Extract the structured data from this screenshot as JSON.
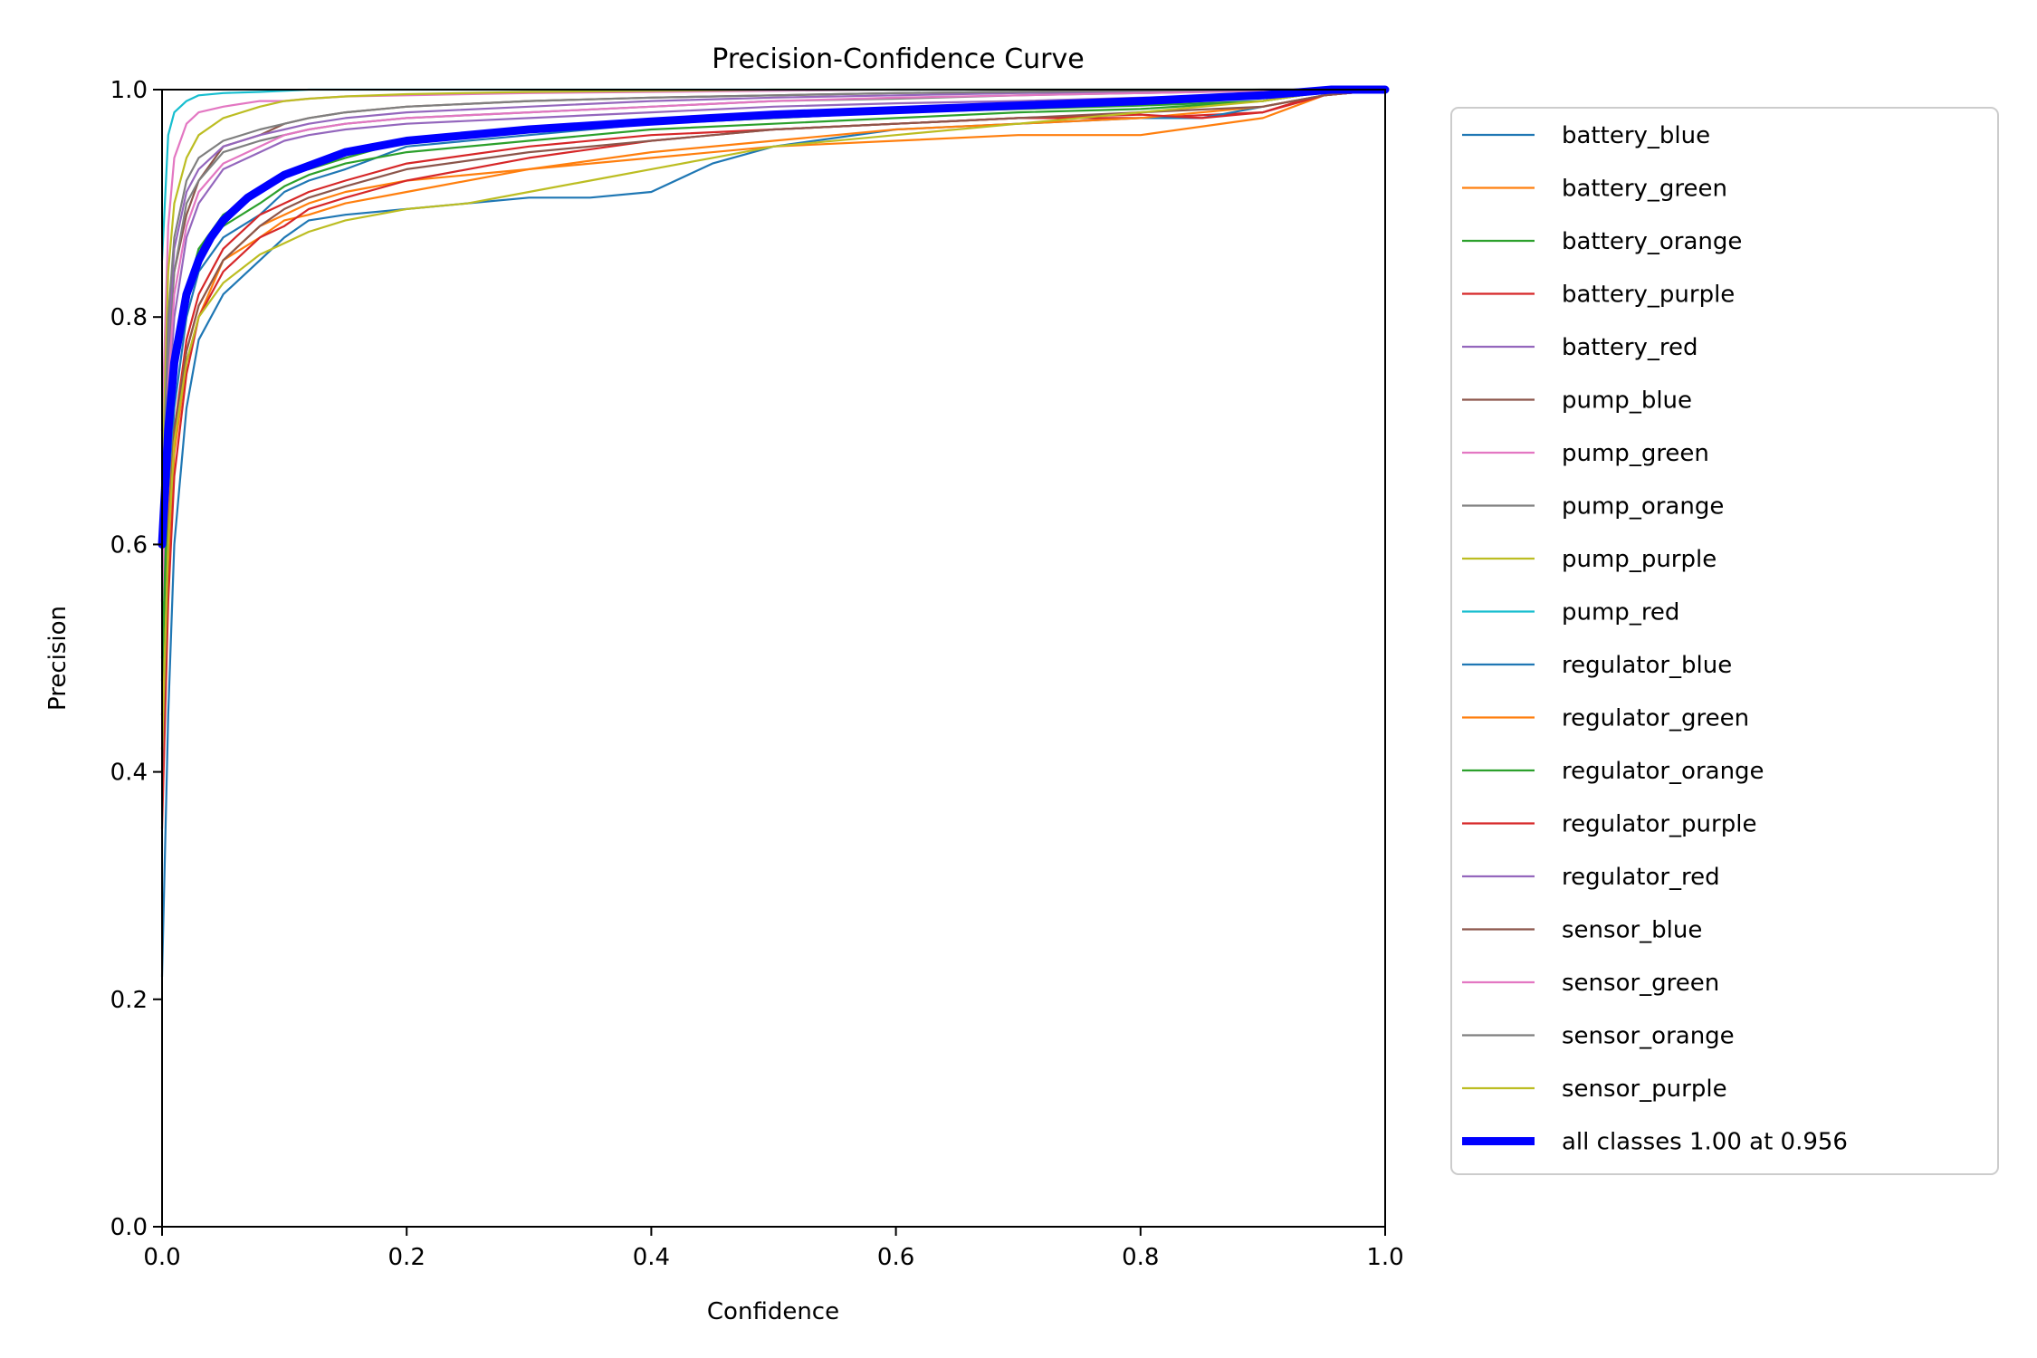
{
  "chart_data": {
    "type": "line",
    "title": "Precision-Confidence Curve",
    "xlabel": "Confidence",
    "ylabel": "Precision",
    "xlim": [
      0,
      1
    ],
    "ylim": [
      0,
      1
    ],
    "xticks": [
      "0.0",
      "0.2",
      "0.4",
      "0.6",
      "0.8",
      "1.0"
    ],
    "yticks": [
      "0.0",
      "0.2",
      "0.4",
      "0.6",
      "0.8",
      "1.0"
    ],
    "grid": false,
    "legend_position": "outside-right",
    "series": [
      {
        "name": "battery_blue",
        "color": "#1f77b4",
        "x": [
          0,
          0.005,
          0.01,
          0.02,
          0.03,
          0.05,
          0.08,
          0.1,
          0.12,
          0.15,
          0.2,
          0.3,
          0.4,
          0.5,
          0.6,
          0.7,
          0.8,
          0.9,
          0.95,
          1.0
        ],
        "y": [
          0.45,
          0.62,
          0.72,
          0.8,
          0.84,
          0.87,
          0.89,
          0.91,
          0.92,
          0.93,
          0.95,
          0.96,
          0.97,
          0.975,
          0.98,
          0.985,
          0.99,
          0.993,
          0.998,
          1.0
        ]
      },
      {
        "name": "battery_green",
        "color": "#ff7f0e",
        "x": [
          0,
          0.005,
          0.01,
          0.02,
          0.03,
          0.05,
          0.08,
          0.1,
          0.12,
          0.15,
          0.2,
          0.3,
          0.4,
          0.5,
          0.6,
          0.7,
          0.8,
          0.9,
          0.95,
          1.0
        ],
        "y": [
          0.4,
          0.58,
          0.68,
          0.76,
          0.8,
          0.85,
          0.88,
          0.89,
          0.9,
          0.91,
          0.92,
          0.93,
          0.94,
          0.95,
          0.955,
          0.96,
          0.96,
          0.975,
          0.995,
          1.0
        ]
      },
      {
        "name": "battery_orange",
        "color": "#2ca02c",
        "x": [
          0,
          0.005,
          0.01,
          0.02,
          0.03,
          0.05,
          0.08,
          0.1,
          0.12,
          0.15,
          0.2,
          0.3,
          0.4,
          0.5,
          0.6,
          0.7,
          0.8,
          0.9,
          0.95,
          1.0
        ],
        "y": [
          0.5,
          0.68,
          0.76,
          0.82,
          0.86,
          0.89,
          0.91,
          0.925,
          0.93,
          0.94,
          0.955,
          0.965,
          0.97,
          0.975,
          0.98,
          0.983,
          0.986,
          0.99,
          0.998,
          1.0
        ]
      },
      {
        "name": "battery_purple",
        "color": "#d62728",
        "x": [
          0,
          0.005,
          0.01,
          0.02,
          0.03,
          0.05,
          0.08,
          0.1,
          0.12,
          0.15,
          0.2,
          0.3,
          0.4,
          0.5,
          0.6,
          0.7,
          0.8,
          0.9,
          0.95,
          1.0
        ],
        "y": [
          0.42,
          0.6,
          0.7,
          0.78,
          0.82,
          0.86,
          0.89,
          0.9,
          0.91,
          0.92,
          0.935,
          0.95,
          0.96,
          0.965,
          0.97,
          0.975,
          0.975,
          0.98,
          0.995,
          1.0
        ]
      },
      {
        "name": "battery_red",
        "color": "#9467bd",
        "x": [
          0,
          0.005,
          0.01,
          0.02,
          0.03,
          0.05,
          0.08,
          0.1,
          0.12,
          0.15,
          0.2,
          0.3,
          0.4,
          0.5,
          0.6,
          0.7,
          0.8,
          0.9,
          0.95,
          1.0
        ],
        "y": [
          0.55,
          0.72,
          0.8,
          0.87,
          0.9,
          0.93,
          0.945,
          0.955,
          0.96,
          0.965,
          0.97,
          0.975,
          0.98,
          0.985,
          0.988,
          0.99,
          0.993,
          0.995,
          0.998,
          1.0
        ]
      },
      {
        "name": "pump_blue",
        "color": "#8c564b",
        "x": [
          0,
          0.005,
          0.01,
          0.02,
          0.03,
          0.05,
          0.08,
          0.1,
          0.12,
          0.15,
          0.2,
          0.3,
          0.4,
          0.5,
          0.6,
          0.7,
          0.8,
          0.9,
          0.95,
          1.0
        ],
        "y": [
          0.6,
          0.78,
          0.84,
          0.89,
          0.92,
          0.95,
          0.96,
          0.97,
          0.975,
          0.98,
          0.985,
          0.99,
          0.993,
          0.995,
          0.997,
          0.998,
          0.999,
          1.0,
          1.0,
          1.0
        ]
      },
      {
        "name": "pump_green",
        "color": "#e377c2",
        "x": [
          0,
          0.005,
          0.01,
          0.02,
          0.03,
          0.05,
          0.08,
          0.1,
          0.12,
          0.15,
          0.2,
          0.3,
          0.4,
          0.5,
          0.6,
          0.7,
          0.8,
          0.9,
          0.95,
          1.0
        ],
        "y": [
          0.7,
          0.88,
          0.94,
          0.97,
          0.98,
          0.985,
          0.99,
          0.99,
          0.992,
          0.994,
          0.995,
          0.997,
          0.998,
          0.999,
          1.0,
          1.0,
          1.0,
          1.0,
          1.0,
          1.0
        ]
      },
      {
        "name": "pump_orange",
        "color": "#7f7f7f",
        "x": [
          0,
          0.005,
          0.01,
          0.02,
          0.03,
          0.05,
          0.08,
          0.1,
          0.12,
          0.15,
          0.2,
          0.3,
          0.4,
          0.5,
          0.6,
          0.7,
          0.8,
          0.9,
          0.95,
          1.0
        ],
        "y": [
          0.58,
          0.76,
          0.84,
          0.9,
          0.92,
          0.945,
          0.955,
          0.96,
          0.965,
          0.97,
          0.975,
          0.98,
          0.985,
          0.99,
          0.992,
          0.995,
          0.997,
          0.999,
          1.0,
          1.0
        ]
      },
      {
        "name": "pump_purple",
        "color": "#bcbd22",
        "x": [
          0,
          0.005,
          0.01,
          0.02,
          0.03,
          0.05,
          0.08,
          0.1,
          0.12,
          0.15,
          0.2,
          0.3,
          0.4,
          0.5,
          0.6,
          0.7,
          0.8,
          0.9,
          0.95,
          1.0
        ],
        "y": [
          0.65,
          0.84,
          0.9,
          0.94,
          0.96,
          0.975,
          0.985,
          0.99,
          0.992,
          0.994,
          0.996,
          0.998,
          0.999,
          1.0,
          1.0,
          1.0,
          1.0,
          1.0,
          1.0,
          1.0
        ]
      },
      {
        "name": "pump_red",
        "color": "#17becf",
        "x": [
          0,
          0.005,
          0.01,
          0.02,
          0.03,
          0.05,
          0.08,
          0.1,
          0.12,
          0.15,
          0.2,
          0.3,
          0.4,
          0.5,
          0.6,
          0.7,
          0.8,
          0.9,
          0.95,
          1.0
        ],
        "y": [
          0.85,
          0.96,
          0.98,
          0.99,
          0.995,
          0.997,
          0.998,
          0.999,
          1.0,
          1.0,
          1.0,
          1.0,
          1.0,
          1.0,
          1.0,
          1.0,
          1.0,
          1.0,
          1.0,
          1.0
        ]
      },
      {
        "name": "regulator_blue",
        "color": "#1f77b4",
        "x": [
          0,
          0.005,
          0.01,
          0.02,
          0.03,
          0.05,
          0.08,
          0.1,
          0.12,
          0.15,
          0.2,
          0.3,
          0.35,
          0.4,
          0.45,
          0.5,
          0.6,
          0.7,
          0.8,
          0.85,
          0.9,
          0.95,
          1.0
        ],
        "y": [
          0.22,
          0.45,
          0.6,
          0.72,
          0.78,
          0.82,
          0.85,
          0.87,
          0.885,
          0.89,
          0.895,
          0.905,
          0.905,
          0.91,
          0.935,
          0.95,
          0.965,
          0.97,
          0.975,
          0.975,
          0.985,
          0.995,
          1.0
        ]
      },
      {
        "name": "regulator_green",
        "color": "#ff7f0e",
        "x": [
          0,
          0.005,
          0.01,
          0.02,
          0.03,
          0.05,
          0.08,
          0.1,
          0.12,
          0.15,
          0.2,
          0.3,
          0.4,
          0.5,
          0.6,
          0.7,
          0.8,
          0.9,
          0.95,
          1.0
        ],
        "y": [
          0.45,
          0.62,
          0.7,
          0.77,
          0.81,
          0.85,
          0.87,
          0.885,
          0.89,
          0.9,
          0.91,
          0.93,
          0.945,
          0.955,
          0.965,
          0.97,
          0.975,
          0.985,
          0.995,
          1.0
        ]
      },
      {
        "name": "regulator_orange",
        "color": "#2ca02c",
        "x": [
          0,
          0.005,
          0.01,
          0.02,
          0.03,
          0.05,
          0.08,
          0.1,
          0.12,
          0.15,
          0.2,
          0.3,
          0.4,
          0.5,
          0.6,
          0.7,
          0.8,
          0.9,
          0.95,
          1.0
        ],
        "y": [
          0.48,
          0.66,
          0.75,
          0.82,
          0.86,
          0.88,
          0.9,
          0.915,
          0.925,
          0.935,
          0.945,
          0.955,
          0.965,
          0.97,
          0.975,
          0.98,
          0.983,
          0.99,
          0.998,
          1.0
        ]
      },
      {
        "name": "regulator_purple",
        "color": "#d62728",
        "x": [
          0,
          0.005,
          0.01,
          0.02,
          0.03,
          0.05,
          0.08,
          0.1,
          0.12,
          0.15,
          0.2,
          0.3,
          0.4,
          0.5,
          0.6,
          0.7,
          0.8,
          0.85,
          0.9,
          0.93,
          0.95,
          1.0
        ],
        "y": [
          0.35,
          0.55,
          0.66,
          0.75,
          0.8,
          0.84,
          0.87,
          0.88,
          0.895,
          0.905,
          0.92,
          0.94,
          0.955,
          0.965,
          0.97,
          0.975,
          0.978,
          0.975,
          0.98,
          0.99,
          0.995,
          1.0
        ]
      },
      {
        "name": "regulator_red",
        "color": "#9467bd",
        "x": [
          0,
          0.005,
          0.01,
          0.02,
          0.03,
          0.05,
          0.08,
          0.1,
          0.12,
          0.15,
          0.2,
          0.3,
          0.4,
          0.5,
          0.6,
          0.7,
          0.8,
          0.9,
          0.95,
          1.0
        ],
        "y": [
          0.6,
          0.78,
          0.86,
          0.91,
          0.93,
          0.95,
          0.96,
          0.965,
          0.97,
          0.975,
          0.98,
          0.985,
          0.99,
          0.993,
          0.995,
          0.997,
          0.998,
          1.0,
          1.0,
          1.0
        ]
      },
      {
        "name": "sensor_blue",
        "color": "#8c564b",
        "x": [
          0,
          0.005,
          0.01,
          0.02,
          0.03,
          0.05,
          0.08,
          0.1,
          0.12,
          0.15,
          0.2,
          0.3,
          0.4,
          0.5,
          0.6,
          0.7,
          0.8,
          0.9,
          0.95,
          1.0
        ],
        "y": [
          0.4,
          0.6,
          0.7,
          0.77,
          0.81,
          0.85,
          0.88,
          0.895,
          0.905,
          0.915,
          0.93,
          0.945,
          0.955,
          0.965,
          0.97,
          0.975,
          0.98,
          0.985,
          0.995,
          1.0
        ]
      },
      {
        "name": "sensor_green",
        "color": "#e377c2",
        "x": [
          0,
          0.005,
          0.01,
          0.02,
          0.03,
          0.05,
          0.08,
          0.1,
          0.12,
          0.15,
          0.2,
          0.3,
          0.4,
          0.5,
          0.6,
          0.7,
          0.8,
          0.9,
          0.95,
          1.0
        ],
        "y": [
          0.55,
          0.74,
          0.82,
          0.88,
          0.91,
          0.935,
          0.95,
          0.96,
          0.965,
          0.97,
          0.975,
          0.98,
          0.985,
          0.99,
          0.993,
          0.995,
          0.997,
          0.999,
          1.0,
          1.0
        ]
      },
      {
        "name": "sensor_orange",
        "color": "#7f7f7f",
        "x": [
          0,
          0.005,
          0.01,
          0.02,
          0.03,
          0.05,
          0.08,
          0.1,
          0.12,
          0.15,
          0.2,
          0.3,
          0.4,
          0.5,
          0.6,
          0.7,
          0.8,
          0.9,
          0.95,
          1.0
        ],
        "y": [
          0.62,
          0.8,
          0.87,
          0.92,
          0.94,
          0.955,
          0.965,
          0.97,
          0.975,
          0.98,
          0.985,
          0.99,
          0.993,
          0.995,
          0.997,
          0.998,
          0.999,
          1.0,
          1.0,
          1.0
        ]
      },
      {
        "name": "sensor_purple",
        "color": "#bcbd22",
        "x": [
          0,
          0.005,
          0.01,
          0.02,
          0.03,
          0.05,
          0.08,
          0.1,
          0.12,
          0.15,
          0.2,
          0.25,
          0.3,
          0.35,
          0.4,
          0.45,
          0.5,
          0.6,
          0.7,
          0.8,
          0.9,
          0.95,
          1.0
        ],
        "y": [
          0.42,
          0.6,
          0.69,
          0.76,
          0.8,
          0.83,
          0.855,
          0.865,
          0.875,
          0.885,
          0.895,
          0.9,
          0.91,
          0.92,
          0.93,
          0.94,
          0.95,
          0.96,
          0.97,
          0.98,
          0.99,
          0.998,
          1.0
        ]
      },
      {
        "name": "all classes 1.00 at 0.956",
        "color": "#0000ff",
        "bold": true,
        "x": [
          0,
          0.005,
          0.01,
          0.02,
          0.03,
          0.04,
          0.05,
          0.07,
          0.1,
          0.15,
          0.2,
          0.3,
          0.4,
          0.5,
          0.6,
          0.7,
          0.8,
          0.9,
          0.956,
          1.0
        ],
        "y": [
          0.6,
          0.7,
          0.76,
          0.82,
          0.85,
          0.87,
          0.885,
          0.905,
          0.925,
          0.945,
          0.955,
          0.965,
          0.972,
          0.978,
          0.982,
          0.986,
          0.99,
          0.995,
          1.0,
          1.0
        ]
      }
    ]
  }
}
